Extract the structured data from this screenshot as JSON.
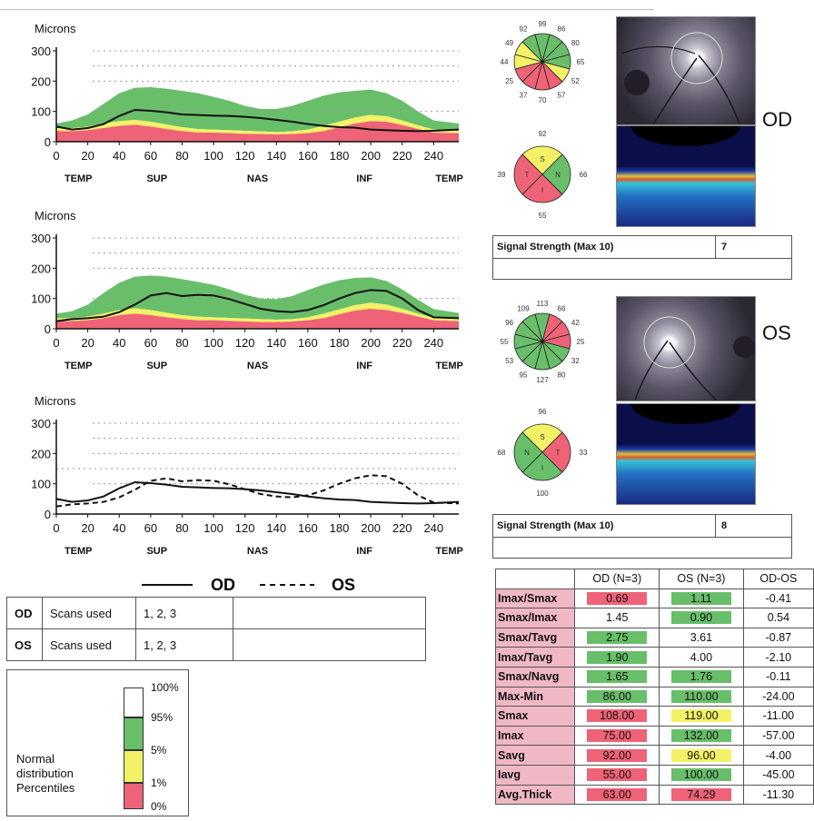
{
  "colors": {
    "normal": "#69be6a",
    "borderline": "#f3f266",
    "outside": "#ee6377",
    "white": "#ffffff",
    "od_line": "#111111"
  },
  "charts": [
    {
      "title": "Microns",
      "y_ticks": [
        0,
        100,
        200,
        300
      ],
      "x_ticks": [
        0,
        20,
        40,
        60,
        80,
        100,
        120,
        140,
        160,
        180,
        200,
        220,
        240
      ],
      "regions": [
        "TEMP",
        "SUP",
        "NAS",
        "INF",
        "TEMP"
      ]
    },
    {
      "title": "Microns",
      "y_ticks": [
        0,
        100,
        200,
        300
      ],
      "x_ticks": [
        0,
        20,
        40,
        60,
        80,
        100,
        120,
        140,
        160,
        180,
        200,
        220,
        240
      ],
      "regions": [
        "TEMP",
        "SUP",
        "NAS",
        "INF",
        "TEMP"
      ]
    },
    {
      "title": "Microns",
      "y_ticks": [
        0,
        100,
        200,
        300
      ],
      "x_ticks": [
        0,
        20,
        40,
        60,
        80,
        100,
        120,
        140,
        160,
        180,
        200,
        220,
        240
      ],
      "regions": [
        "TEMP",
        "SUP",
        "NAS",
        "INF",
        "TEMP"
      ]
    }
  ],
  "chart_data": [
    {
      "type": "area",
      "x": [
        0,
        10,
        20,
        30,
        40,
        50,
        60,
        70,
        80,
        90,
        100,
        110,
        120,
        130,
        140,
        150,
        160,
        170,
        180,
        190,
        200,
        210,
        220,
        230,
        240,
        256
      ],
      "series": [
        {
          "name": "OD",
          "values": [
            50,
            40,
            45,
            58,
            85,
            105,
            102,
            97,
            90,
            88,
            86,
            85,
            82,
            78,
            72,
            66,
            58,
            52,
            48,
            46,
            40,
            38,
            36,
            35,
            36,
            40
          ]
        }
      ],
      "bands": {
        "p1": [
          35,
          35,
          38,
          45,
          52,
          56,
          50,
          42,
          35,
          30,
          30,
          28,
          26,
          25,
          24,
          25,
          28,
          35,
          48,
          60,
          68,
          66,
          55,
          42,
          30,
          28
        ],
        "p5": [
          45,
          45,
          50,
          60,
          68,
          72,
          66,
          57,
          48,
          42,
          40,
          38,
          36,
          34,
          32,
          34,
          40,
          52,
          66,
          80,
          88,
          84,
          70,
          54,
          40,
          36
        ],
        "p95": [
          60,
          70,
          90,
          125,
          160,
          178,
          180,
          175,
          168,
          160,
          148,
          135,
          118,
          108,
          108,
          118,
          135,
          152,
          163,
          168,
          172,
          160,
          135,
          100,
          70,
          60
        ]
      },
      "ylim": [
        0,
        300
      ],
      "xlim": [
        0,
        256
      ]
    },
    {
      "type": "area",
      "x": [
        0,
        10,
        20,
        30,
        40,
        50,
        60,
        70,
        80,
        90,
        100,
        110,
        120,
        130,
        140,
        150,
        160,
        170,
        180,
        190,
        200,
        210,
        220,
        230,
        240,
        256
      ],
      "series": [
        {
          "name": "OS",
          "values": [
            25,
            32,
            35,
            40,
            55,
            80,
            110,
            118,
            108,
            112,
            110,
            98,
            82,
            66,
            58,
            55,
            62,
            78,
            100,
            118,
            128,
            125,
            100,
            62,
            38,
            35
          ]
        }
      ],
      "bands": {
        "p1": [
          25,
          25,
          28,
          35,
          45,
          50,
          45,
          38,
          32,
          28,
          28,
          26,
          24,
          22,
          22,
          24,
          28,
          35,
          48,
          60,
          66,
          62,
          52,
          40,
          28,
          25
        ],
        "p5": [
          35,
          35,
          40,
          50,
          62,
          68,
          62,
          53,
          45,
          40,
          38,
          36,
          34,
          32,
          30,
          32,
          38,
          50,
          64,
          78,
          86,
          80,
          66,
          50,
          36,
          32
        ],
        "p95": [
          50,
          58,
          80,
          118,
          152,
          172,
          176,
          172,
          164,
          155,
          145,
          130,
          112,
          100,
          98,
          108,
          128,
          146,
          160,
          168,
          170,
          158,
          130,
          96,
          65,
          52
        ]
      },
      "ylim": [
        0,
        300
      ],
      "xlim": [
        0,
        256
      ]
    },
    {
      "type": "line",
      "x": [
        0,
        10,
        20,
        30,
        40,
        50,
        60,
        70,
        80,
        90,
        100,
        110,
        120,
        130,
        140,
        150,
        160,
        170,
        180,
        190,
        200,
        210,
        220,
        230,
        240,
        256
      ],
      "series": [
        {
          "name": "OD",
          "values": [
            50,
            40,
            45,
            58,
            85,
            105,
            102,
            97,
            90,
            88,
            86,
            85,
            82,
            78,
            72,
            66,
            58,
            52,
            48,
            46,
            40,
            38,
            36,
            35,
            36,
            40
          ]
        },
        {
          "name": "OS",
          "values": [
            25,
            32,
            35,
            40,
            55,
            80,
            110,
            118,
            108,
            112,
            110,
            98,
            82,
            66,
            58,
            55,
            62,
            78,
            100,
            118,
            128,
            125,
            100,
            62,
            38,
            35
          ]
        }
      ],
      "ylim": [
        0,
        300
      ],
      "xlim": [
        0,
        256
      ]
    }
  ],
  "legend": {
    "od": "OD",
    "os": "OS"
  },
  "scans": [
    {
      "eye": "OD",
      "label": "Scans used",
      "values": "1, 2, 3"
    },
    {
      "eye": "OS",
      "label": "Scans used",
      "values": "1, 2, 3"
    }
  ],
  "percentiles": {
    "label": [
      "Normal",
      "distribution",
      "Percentiles"
    ],
    "levels": [
      "100%",
      "95%",
      "5%",
      "1%",
      "0%"
    ]
  },
  "od": {
    "eye_label": "OD",
    "sectors12": [
      "99",
      "86",
      "80",
      "65",
      "52",
      "57",
      "70",
      "37",
      "25",
      "44",
      "49",
      "92"
    ],
    "quadrants": {
      "S": "92",
      "N": "66",
      "I": "55",
      "T": "39"
    },
    "signal_label": "Signal Strength (Max 10)",
    "signal_value": "7"
  },
  "os": {
    "eye_label": "OS",
    "sectors12": [
      "113",
      "66",
      "42",
      "25",
      "32",
      "80",
      "127",
      "95",
      "53",
      "55",
      "96",
      "109"
    ],
    "quadrants": {
      "S": "96",
      "N": "68",
      "I": "100",
      "T": "33"
    },
    "signal_label": "Signal Strength (Max 10)",
    "signal_value": "8"
  },
  "metrics": {
    "headers": [
      "",
      "OD (N=3)",
      "OS (N=3)",
      "OD-OS"
    ],
    "rows": [
      {
        "label": "Imax/Smax",
        "od": "0.69",
        "os": "1.11",
        "diff": "-0.41",
        "odc": "outside",
        "osc": "normal"
      },
      {
        "label": "Smax/Imax",
        "od": "1.45",
        "os": "0.90",
        "diff": "0.54",
        "odc": "white",
        "osc": "normal"
      },
      {
        "label": "Smax/Tavg",
        "od": "2.75",
        "os": "3.61",
        "diff": "-0.87",
        "odc": "normal",
        "osc": "white"
      },
      {
        "label": "Imax/Tavg",
        "od": "1.90",
        "os": "4.00",
        "diff": "-2.10",
        "odc": "normal",
        "osc": "white"
      },
      {
        "label": "Smax/Navg",
        "od": "1.65",
        "os": "1.76",
        "diff": "-0.11",
        "odc": "normal",
        "osc": "normal"
      },
      {
        "label": "Max-Min",
        "od": "86.00",
        "os": "110.00",
        "diff": "-24.00",
        "odc": "normal",
        "osc": "normal"
      },
      {
        "label": "Smax",
        "od": "108.00",
        "os": "119.00",
        "diff": "-11.00",
        "odc": "outside",
        "osc": "borderline"
      },
      {
        "label": "Imax",
        "od": "75.00",
        "os": "132.00",
        "diff": "-57.00",
        "odc": "outside",
        "osc": "normal"
      },
      {
        "label": "Savg",
        "od": "92.00",
        "os": "96.00",
        "diff": "-4.00",
        "odc": "outside",
        "osc": "borderline"
      },
      {
        "label": "Iavg",
        "od": "55.00",
        "os": "100.00",
        "diff": "-45.00",
        "odc": "outside",
        "osc": "normal"
      },
      {
        "label": "Avg.Thick",
        "od": "63.00",
        "os": "74.29",
        "diff": "-11.30",
        "odc": "outside",
        "osc": "outside"
      }
    ]
  }
}
